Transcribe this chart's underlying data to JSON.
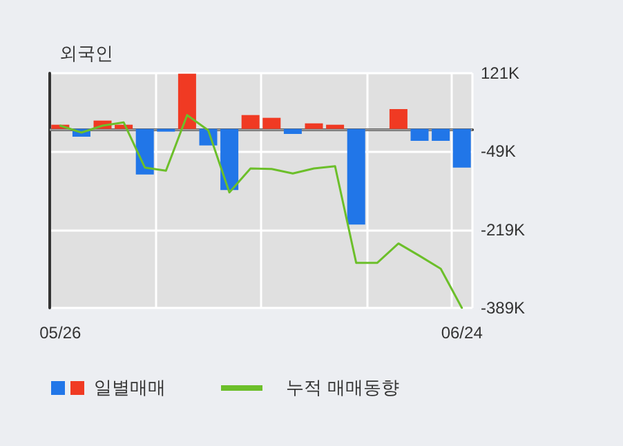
{
  "chart_data": {
    "type": "bar",
    "title": "외국인",
    "categories": [
      "05/26",
      null,
      null,
      null,
      null,
      null,
      null,
      null,
      null,
      null,
      null,
      null,
      null,
      null,
      null,
      null,
      null,
      null,
      null,
      "06/24"
    ],
    "series": [
      {
        "name": "일별매매",
        "values": [
          9000,
          -17000,
          18000,
          9000,
          -99000,
          -6000,
          120000,
          -36000,
          -133000,
          30000,
          24000,
          -11000,
          12000,
          9000,
          -208000,
          0,
          43000,
          -26000,
          -26000,
          -84000
        ],
        "colors": [
          "#f03a23",
          "#2176e8",
          "#f03a23",
          "#f03a23",
          "#2176e8",
          "#2176e8",
          "#f03a23",
          "#2176e8",
          "#2176e8",
          "#f03a23",
          "#f03a23",
          "#2176e8",
          "#f03a23",
          "#f03a23",
          "#2176e8",
          "#f03a23",
          "#f03a23",
          "#2176e8",
          "#2176e8",
          "#2176e8"
        ]
      },
      {
        "type": "line",
        "name": "누적 매매동향",
        "color": "#6cbf2a",
        "values": [
          7000,
          -8000,
          7000,
          14000,
          -84000,
          -91000,
          30000,
          -3000,
          -138000,
          -86000,
          -87000,
          -97000,
          -86000,
          -81000,
          -291000,
          -291000,
          -249000,
          -276000,
          -304000,
          -389000
        ]
      }
    ],
    "ylim": [
      -389000,
      121000
    ],
    "yticks": [
      {
        "value": 121000,
        "label": "121K"
      },
      {
        "value": -49000,
        "label": "-49K"
      },
      {
        "value": -219000,
        "label": "-219K"
      },
      {
        "value": -389000,
        "label": "-389K"
      }
    ],
    "ref_lines": [
      {
        "axis": "y",
        "value": 0,
        "color": "#999999"
      }
    ],
    "grid": true,
    "legend": "bottom",
    "marker": "none",
    "line_style": "solid"
  }
}
